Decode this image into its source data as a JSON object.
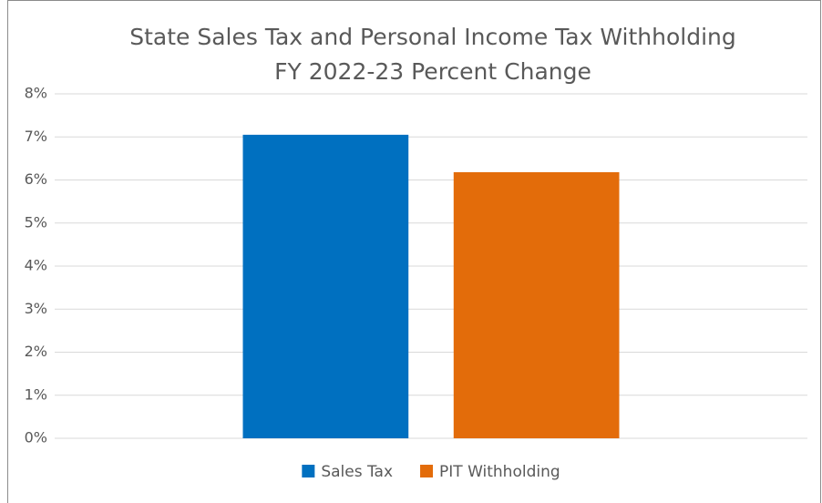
{
  "chart_data": {
    "type": "bar",
    "title": [
      "State Sales Tax and Personal Income Tax Withholding",
      "FY 2022-23 Percent Change"
    ],
    "categories": [
      null
    ],
    "series": [
      {
        "name": "Sales Tax",
        "color": "#0070c0",
        "values": [
          7.05
        ]
      },
      {
        "name": "PIT Withholding",
        "color": "#e36c0a",
        "values": [
          6.18
        ]
      }
    ],
    "ylim": [
      0,
      8
    ],
    "yticks": [
      {
        "value": 0,
        "label": "0%"
      },
      {
        "value": 1,
        "label": "1%"
      },
      {
        "value": 2,
        "label": "2%"
      },
      {
        "value": 3,
        "label": "3%"
      },
      {
        "value": 4,
        "label": "4%"
      },
      {
        "value": 5,
        "label": "5%"
      },
      {
        "value": 6,
        "label": "6%"
      },
      {
        "value": 7,
        "label": "7%"
      },
      {
        "value": 8,
        "label": "8%"
      }
    ],
    "grid": true,
    "legend": "bottom"
  }
}
